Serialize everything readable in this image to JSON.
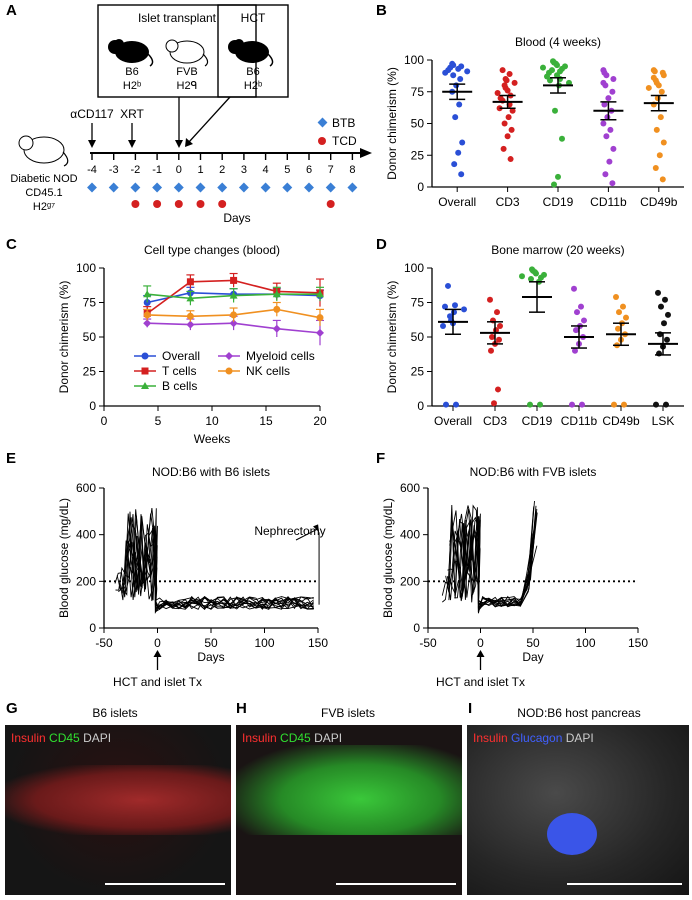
{
  "panels": {
    "A": "A",
    "B": "B",
    "C": "C",
    "D": "D",
    "E": "E",
    "F": "F",
    "G": "G",
    "H": "H",
    "I": "I"
  },
  "panelA": {
    "islet_box_title": "Islet transplant",
    "hct_box_title": "HCT",
    "mice": [
      {
        "strain": "B6",
        "mhc": "H2ᵇ"
      },
      {
        "strain": "FVB",
        "mhc": "H2ᑫ"
      },
      {
        "strain": "B6",
        "mhc": "H2ᵇ"
      }
    ],
    "recipient": [
      "Diabetic NOD",
      "CD45.1",
      "H2ᵍ⁷"
    ],
    "acd117": "αCD117",
    "xrt": "XRT",
    "days": [
      "-4",
      "-3",
      "-2",
      "-1",
      "0",
      "1",
      "2",
      "3",
      "4",
      "5",
      "6",
      "7",
      "8"
    ],
    "xlabel": "Days",
    "legend": [
      {
        "label": "BTB",
        "color": "#3a7fd5"
      },
      {
        "label": "TCD",
        "color": "#d42020"
      }
    ],
    "btb_days": [
      -4,
      -3,
      -2,
      -1,
      0,
      1,
      2,
      3,
      4,
      5,
      6,
      7,
      8
    ],
    "tcd_days": [
      -2,
      -1,
      0,
      1,
      2,
      7
    ]
  },
  "chart_data": [
    {
      "id": "B",
      "type": "scatter",
      "title": "Blood (4 weeks)",
      "ylabel": "Donor chimerism (%)",
      "ylim": [
        0,
        100
      ],
      "yticks": [
        0,
        25,
        50,
        75,
        100
      ],
      "categories": [
        "Overall",
        "CD3",
        "CD19",
        "CD11b",
        "CD49b"
      ],
      "colors": [
        "#2a4fd6",
        "#d42020",
        "#3ab03a",
        "#a040d0",
        "#f09020"
      ],
      "means": [
        75,
        67,
        80,
        60,
        66
      ],
      "sem": [
        6,
        5,
        6,
        7,
        6
      ],
      "points": [
        [
          97,
          96,
          95,
          94,
          93,
          92,
          91,
          90,
          88,
          85,
          80,
          75,
          65,
          55,
          35,
          27,
          18,
          10
        ],
        [
          92,
          89,
          85,
          84,
          82,
          80,
          78,
          76,
          74,
          72,
          70,
          68,
          65,
          62,
          60,
          55,
          50,
          45,
          40,
          30,
          22
        ],
        [
          99,
          98,
          97,
          96,
          95,
          94,
          93,
          92,
          91,
          90,
          88,
          87,
          85,
          84,
          82,
          80,
          60,
          38,
          8,
          2
        ],
        [
          92,
          90,
          88,
          85,
          82,
          80,
          75,
          70,
          65,
          60,
          55,
          50,
          45,
          40,
          30,
          20,
          10,
          3
        ],
        [
          92,
          91,
          90,
          88,
          86,
          84,
          82,
          80,
          78,
          75,
          70,
          65,
          55,
          45,
          35,
          25,
          15,
          6
        ]
      ]
    },
    {
      "id": "C",
      "type": "line",
      "title": "Cell type changes (blood)",
      "xlabel": "Weeks",
      "ylabel": "Donor chimerism (%)",
      "xlim": [
        0,
        20
      ],
      "ylim": [
        0,
        100
      ],
      "xticks": [
        0,
        5,
        10,
        15,
        20
      ],
      "yticks": [
        0,
        25,
        50,
        75,
        100
      ],
      "x": [
        4,
        8,
        12,
        16,
        20
      ],
      "series": [
        {
          "name": "Overall",
          "color": "#2a4fd6",
          "marker": "circle",
          "values": [
            75,
            82,
            81,
            81,
            80
          ],
          "err": [
            5,
            4,
            4,
            4,
            4
          ]
        },
        {
          "name": "T cells",
          "color": "#d42020",
          "marker": "square",
          "values": [
            67,
            90,
            91,
            83,
            82
          ],
          "err": [
            5,
            5,
            5,
            6,
            10
          ]
        },
        {
          "name": "B cells",
          "color": "#3ab03a",
          "marker": "triangle",
          "values": [
            81,
            78,
            80,
            81,
            81
          ],
          "err": [
            6,
            5,
            5,
            5,
            5
          ]
        },
        {
          "name": "Myeloid cells",
          "color": "#a040d0",
          "marker": "diamond",
          "values": [
            60,
            59,
            60,
            56,
            53
          ],
          "err": [
            3,
            4,
            5,
            6,
            9
          ]
        },
        {
          "name": "NK cells",
          "color": "#f09020",
          "marker": "circle",
          "values": [
            66,
            65,
            66,
            70,
            64
          ],
          "err": [
            4,
            4,
            5,
            5,
            6
          ]
        }
      ],
      "legend_order": [
        [
          0,
          3
        ],
        [
          1,
          4
        ],
        [
          2
        ]
      ]
    },
    {
      "id": "D",
      "type": "scatter",
      "title": "Bone marrow (20 weeks)",
      "ylabel": "Donor chimerism (%)",
      "ylim": [
        0,
        100
      ],
      "yticks": [
        0,
        25,
        50,
        75,
        100
      ],
      "categories": [
        "Overall",
        "CD3",
        "CD19",
        "CD11b",
        "CD49b",
        "LSK"
      ],
      "colors": [
        "#2a4fd6",
        "#d42020",
        "#3ab03a",
        "#a040d0",
        "#f09020",
        "#111111"
      ],
      "means": [
        61,
        53,
        79,
        50,
        52,
        45
      ],
      "sem": [
        9,
        8,
        11,
        8,
        8,
        8
      ],
      "points": [
        [
          87,
          73,
          72,
          70,
          68,
          65,
          62,
          60,
          58,
          1,
          1
        ],
        [
          77,
          68,
          62,
          58,
          55,
          50,
          48,
          45,
          40,
          12,
          2
        ],
        [
          99,
          98,
          97,
          96,
          95,
          94,
          93,
          92,
          90,
          1,
          1
        ],
        [
          85,
          72,
          68,
          62,
          58,
          55,
          50,
          45,
          40,
          1,
          1
        ],
        [
          79,
          72,
          68,
          64,
          60,
          56,
          52,
          48,
          44,
          1,
          1
        ],
        [
          82,
          77,
          72,
          66,
          60,
          52,
          48,
          43,
          38,
          1,
          1
        ]
      ]
    },
    {
      "id": "E",
      "type": "line",
      "title": "NOD:B6 with B6 islets",
      "xlabel": "Days",
      "ylabel": "Blood glucose (mg/dL)",
      "xlim": [
        -50,
        150
      ],
      "ylim": [
        0,
        600
      ],
      "xticks": [
        -50,
        0,
        50,
        100,
        150
      ],
      "yticks": [
        0,
        200,
        400,
        600
      ],
      "threshold": 200,
      "annotation": "Nephrectomy",
      "arrow_label": "HCT and islet Tx"
    },
    {
      "id": "F",
      "type": "line",
      "title": "NOD:B6 with FVB islets",
      "xlabel": "Day",
      "ylabel": "Blood glucose (mg/dL)",
      "xlim": [
        -50,
        150
      ],
      "ylim": [
        0,
        600
      ],
      "xticks": [
        -50,
        0,
        50,
        100,
        150
      ],
      "yticks": [
        0,
        200,
        400,
        600
      ],
      "threshold": 200,
      "arrow_label": "HCT and islet Tx"
    }
  ],
  "micrographs": {
    "G": {
      "title": "B6 islets",
      "legend": [
        {
          "text": "Insulin",
          "color": "#ff3030"
        },
        {
          "text": "CD45",
          "color": "#30e030"
        },
        {
          "text": "DAPI",
          "color": "#cccccc"
        }
      ]
    },
    "H": {
      "title": "FVB islets",
      "legend": [
        {
          "text": "Insulin",
          "color": "#ff3030"
        },
        {
          "text": "CD45",
          "color": "#30e030"
        },
        {
          "text": "DAPI",
          "color": "#cccccc"
        }
      ]
    },
    "I": {
      "title": "NOD:B6 host pancreas",
      "legend": [
        {
          "text": "Insulin",
          "color": "#ff3030"
        },
        {
          "text": "Glucagon",
          "color": "#4060ff"
        },
        {
          "text": "DAPI",
          "color": "#cccccc"
        }
      ]
    }
  }
}
